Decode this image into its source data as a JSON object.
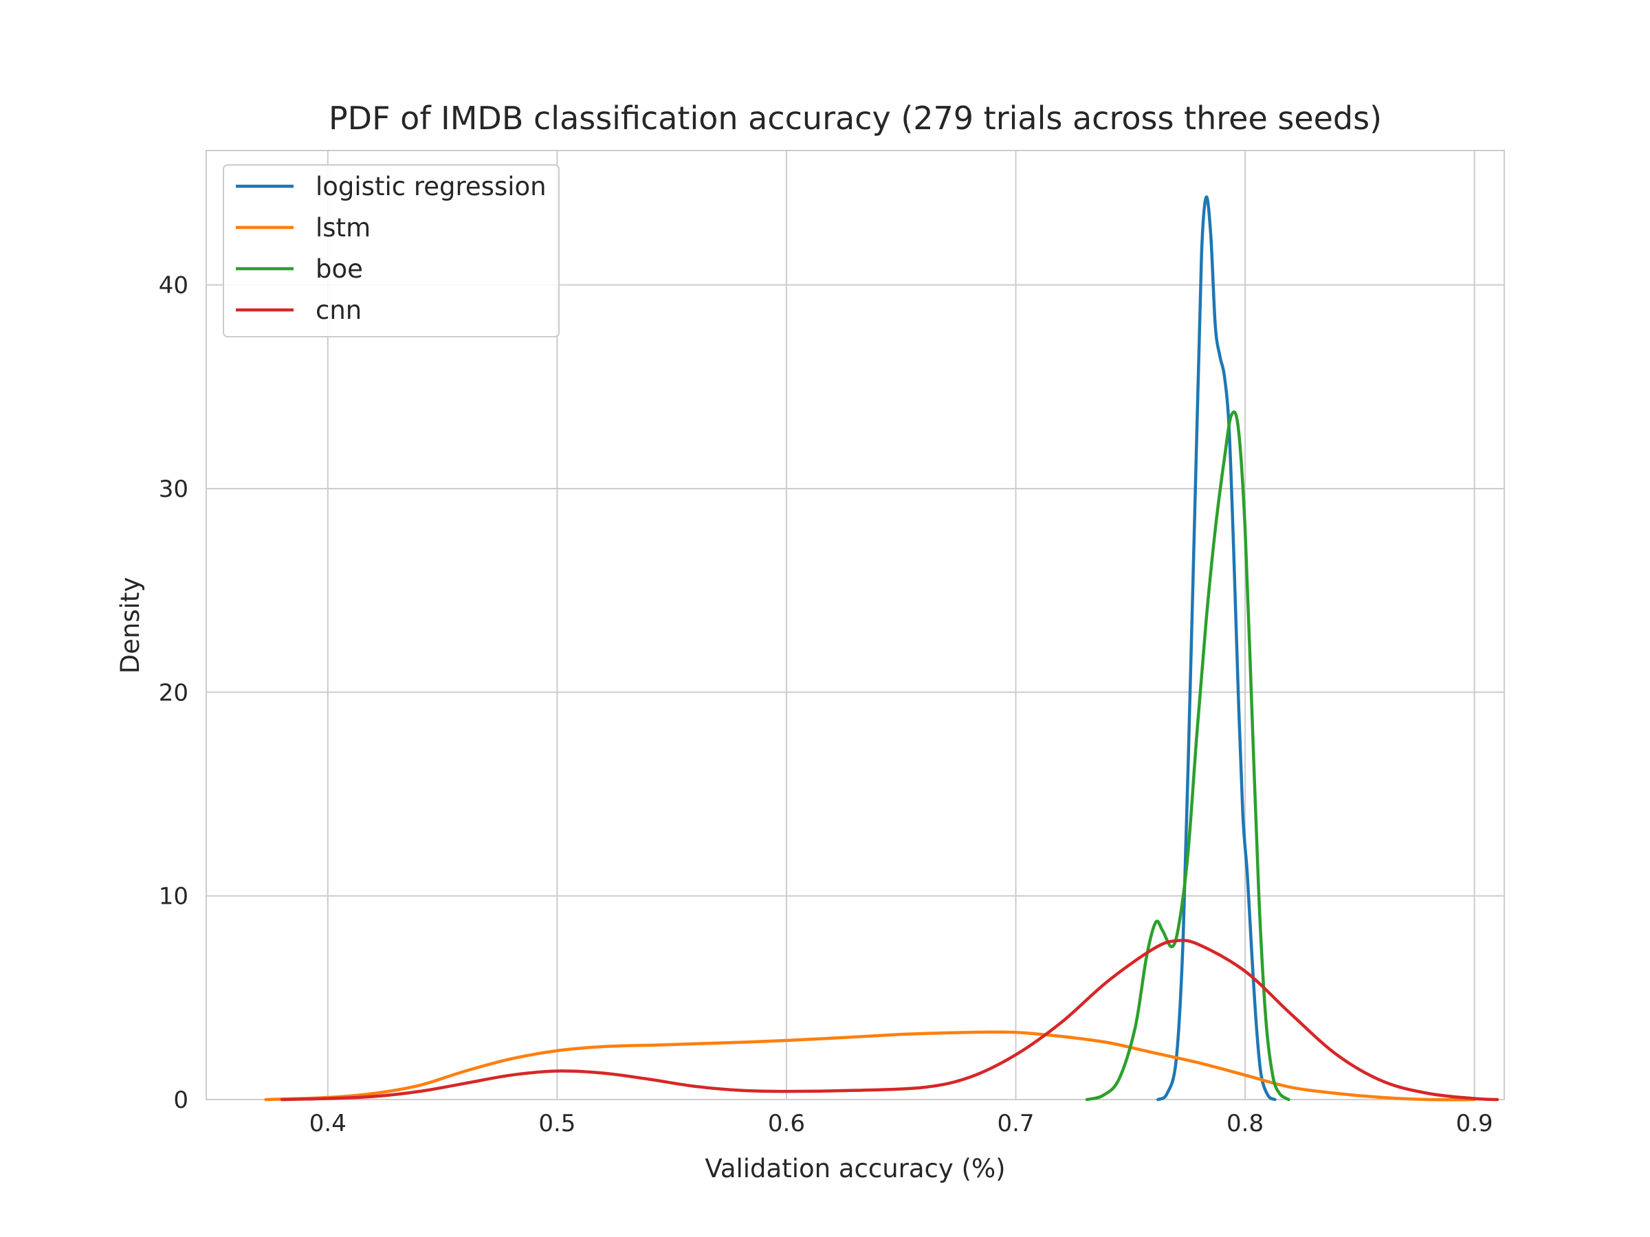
{
  "chart_data": {
    "type": "line",
    "title": "PDF of IMDB classification accuracy (279 trials across three seeds)",
    "xlabel": "Validation accuracy (%)",
    "ylabel": "Density",
    "xlim": [
      0.347,
      0.913
    ],
    "ylim": [
      0,
      46.6
    ],
    "xticks": [
      0.4,
      0.5,
      0.6,
      0.7,
      0.8,
      0.9
    ],
    "xtick_labels": [
      "0.4",
      "0.5",
      "0.6",
      "0.7",
      "0.8",
      "0.9"
    ],
    "yticks": [
      0,
      10,
      20,
      30,
      40
    ],
    "ytick_labels": [
      "0",
      "10",
      "20",
      "30",
      "40"
    ],
    "grid": true,
    "legend_position": "top-left",
    "series": [
      {
        "name": "logistic regression",
        "color": "#1f77b4",
        "points": [
          [
            0.762,
            0.0
          ],
          [
            0.766,
            0.3
          ],
          [
            0.77,
            2.0
          ],
          [
            0.773,
            8.0
          ],
          [
            0.776,
            20.0
          ],
          [
            0.779,
            33.0
          ],
          [
            0.781,
            41.5
          ],
          [
            0.783,
            44.3
          ],
          [
            0.785,
            42.5
          ],
          [
            0.787,
            38.0
          ],
          [
            0.789,
            36.5
          ],
          [
            0.791,
            35.5
          ],
          [
            0.793,
            33.0
          ],
          [
            0.795,
            27.0
          ],
          [
            0.797,
            20.0
          ],
          [
            0.799,
            14.0
          ],
          [
            0.801,
            11.0
          ],
          [
            0.803,
            7.0
          ],
          [
            0.805,
            3.5
          ],
          [
            0.807,
            1.2
          ],
          [
            0.81,
            0.2
          ],
          [
            0.813,
            0.0
          ]
        ]
      },
      {
        "name": "lstm",
        "color": "#ff7f0e",
        "points": [
          [
            0.373,
            0.0
          ],
          [
            0.4,
            0.1
          ],
          [
            0.42,
            0.3
          ],
          [
            0.44,
            0.7
          ],
          [
            0.46,
            1.4
          ],
          [
            0.48,
            2.0
          ],
          [
            0.5,
            2.4
          ],
          [
            0.52,
            2.6
          ],
          [
            0.55,
            2.7
          ],
          [
            0.6,
            2.9
          ],
          [
            0.65,
            3.2
          ],
          [
            0.68,
            3.3
          ],
          [
            0.7,
            3.3
          ],
          [
            0.72,
            3.1
          ],
          [
            0.74,
            2.8
          ],
          [
            0.76,
            2.3
          ],
          [
            0.78,
            1.8
          ],
          [
            0.8,
            1.2
          ],
          [
            0.82,
            0.6
          ],
          [
            0.84,
            0.3
          ],
          [
            0.86,
            0.1
          ],
          [
            0.88,
            0.0
          ],
          [
            0.9,
            0.0
          ]
        ]
      },
      {
        "name": "boe",
        "color": "#2ca02c",
        "points": [
          [
            0.731,
            0.0
          ],
          [
            0.738,
            0.2
          ],
          [
            0.745,
            1.0
          ],
          [
            0.752,
            3.5
          ],
          [
            0.757,
            7.0
          ],
          [
            0.761,
            8.7
          ],
          [
            0.764,
            8.3
          ],
          [
            0.768,
            7.5
          ],
          [
            0.771,
            8.5
          ],
          [
            0.775,
            12.0
          ],
          [
            0.779,
            18.0
          ],
          [
            0.783,
            23.5
          ],
          [
            0.787,
            28.0
          ],
          [
            0.791,
            31.5
          ],
          [
            0.794,
            33.6
          ],
          [
            0.797,
            33.0
          ],
          [
            0.8,
            28.0
          ],
          [
            0.803,
            19.0
          ],
          [
            0.806,
            10.0
          ],
          [
            0.809,
            4.0
          ],
          [
            0.812,
            1.2
          ],
          [
            0.815,
            0.3
          ],
          [
            0.819,
            0.0
          ]
        ]
      },
      {
        "name": "cnn",
        "color": "#d62728",
        "points": [
          [
            0.38,
            0.0
          ],
          [
            0.4,
            0.05
          ],
          [
            0.42,
            0.15
          ],
          [
            0.44,
            0.4
          ],
          [
            0.46,
            0.8
          ],
          [
            0.48,
            1.2
          ],
          [
            0.5,
            1.4
          ],
          [
            0.52,
            1.3
          ],
          [
            0.54,
            1.0
          ],
          [
            0.56,
            0.65
          ],
          [
            0.58,
            0.45
          ],
          [
            0.6,
            0.4
          ],
          [
            0.63,
            0.45
          ],
          [
            0.66,
            0.6
          ],
          [
            0.68,
            1.1
          ],
          [
            0.7,
            2.2
          ],
          [
            0.72,
            3.8
          ],
          [
            0.74,
            5.8
          ],
          [
            0.76,
            7.4
          ],
          [
            0.77,
            7.8
          ],
          [
            0.78,
            7.6
          ],
          [
            0.8,
            6.3
          ],
          [
            0.82,
            4.2
          ],
          [
            0.84,
            2.2
          ],
          [
            0.86,
            0.9
          ],
          [
            0.88,
            0.3
          ],
          [
            0.9,
            0.05
          ],
          [
            0.91,
            0.0
          ]
        ]
      }
    ]
  }
}
